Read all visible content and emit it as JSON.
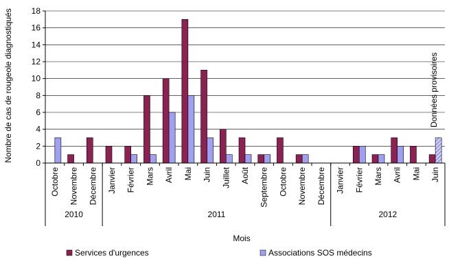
{
  "chart_data": {
    "type": "bar",
    "ylabel": "Nombre de cas de rougeole diagnostiqués",
    "xlabel": "Mois",
    "ylim": [
      0,
      18
    ],
    "yticks": [
      0,
      2,
      4,
      6,
      8,
      10,
      12,
      14,
      16,
      18
    ],
    "categories": [
      "Octobre",
      "Novembre",
      "Décembre",
      "Janvier",
      "Février",
      "Mars",
      "Avril",
      "Mai",
      "Juin",
      "Juillet",
      "Août",
      "Septembre",
      "Octobre",
      "Novembre",
      "Décembre",
      "Janvier",
      "Février",
      "Mars",
      "Avril",
      "Mai",
      "Juin"
    ],
    "years": [
      {
        "label": "2010",
        "start": 0,
        "end": 2
      },
      {
        "label": "2011",
        "start": 3,
        "end": 14
      },
      {
        "label": "2012",
        "start": 15,
        "end": 20
      }
    ],
    "series": [
      {
        "name": "Services d'urgences",
        "color": "#8B2252",
        "values": [
          0,
          1,
          3,
          2,
          2,
          8,
          10,
          17,
          11,
          4,
          3,
          1,
          3,
          1,
          0,
          0,
          2,
          1,
          3,
          2,
          1
        ]
      },
      {
        "name": "Associations SOS médecins",
        "color": "#A0A0F0",
        "values": [
          3,
          0,
          0,
          0,
          1,
          1,
          6,
          8,
          3,
          1,
          1,
          1,
          0,
          1,
          0,
          0,
          2,
          1,
          2,
          0,
          3
        ]
      }
    ],
    "provisional_index": 20,
    "annotation": "Données provisoires",
    "grid": true,
    "legend_position": "bottom"
  }
}
